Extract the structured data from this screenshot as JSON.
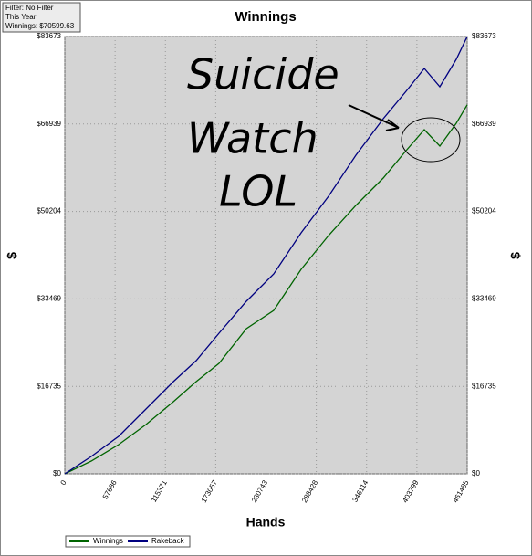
{
  "chart_data": {
    "type": "line",
    "title": "Winnings",
    "info": [
      "Filter: No Filter",
      "This Year",
      "Winnings: $70599.63"
    ],
    "x_label": "Hands",
    "y_label": "$",
    "annotation": [
      "Suicide",
      "Watch",
      "LOL"
    ],
    "x": [
      0,
      30347,
      61741,
      93134,
      124528,
      150689,
      176850,
      208244,
      239637,
      271031,
      302425,
      333818,
      365212,
      391373,
      412302,
      430092,
      448928,
      461485
    ],
    "series": [
      {
        "name": "Winnings",
        "color": "#006400",
        "values": [
          0,
          2446,
          5590,
          9433,
          13800,
          17643,
          21137,
          27775,
          31268,
          39129,
          45592,
          51357,
          56597,
          61838,
          65856,
          62712,
          67079,
          70599.63
        ]
      },
      {
        "name": "Rakeback",
        "color": "#000080",
        "values": [
          0,
          3319,
          7162,
          12403,
          17643,
          21661,
          26901,
          33015,
          38256,
          46117,
          53104,
          60965,
          67952,
          73192,
          77559,
          74065,
          79305,
          83673
        ]
      }
    ],
    "xlim": [
      0,
      461485
    ],
    "xticks": [
      0,
      57686,
      115371,
      173057,
      230743,
      288428,
      346114,
      403799,
      461485
    ],
    "ylim": [
      0,
      83673
    ],
    "yticks": [
      {
        "value": 0,
        "label": "$0"
      },
      {
        "value": 16735,
        "label": "$16735"
      },
      {
        "value": 33469,
        "label": "$33469"
      },
      {
        "value": 50204,
        "label": "$50204"
      },
      {
        "value": 66939,
        "label": "$66939"
      },
      {
        "value": 83673,
        "label": "$83673"
      }
    ],
    "grid": true,
    "legend_position": "bottom-left"
  }
}
